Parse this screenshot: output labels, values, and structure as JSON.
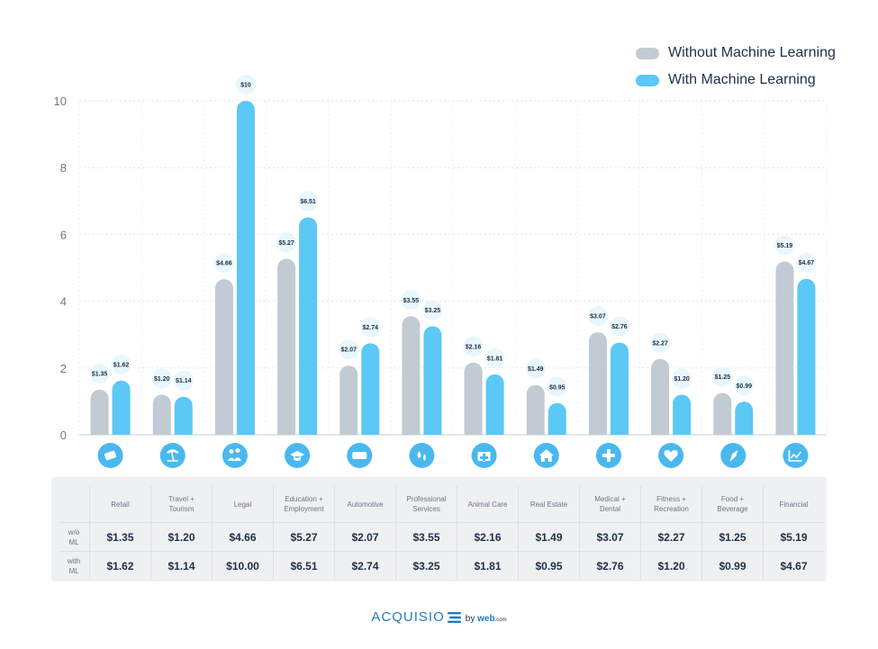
{
  "chart_data": {
    "type": "bar",
    "categories": [
      "Retail",
      "Travel + Tourism",
      "Legal",
      "Education + Employment",
      "Automotive",
      "Professional Services",
      "Animal Care",
      "Real Estate",
      "Medical + Dental",
      "Fitness + Recreation",
      "Food + Beverage",
      "Financial"
    ],
    "series": [
      {
        "name": "Without Machine Learning",
        "color": "#c2cbd3",
        "values": [
          1.35,
          1.2,
          4.66,
          5.27,
          2.07,
          3.55,
          2.16,
          1.49,
          3.07,
          2.27,
          1.25,
          5.19
        ],
        "labels": [
          "$1.35",
          "$1.20",
          "$4.66",
          "$5.27",
          "$2.07",
          "$3.55",
          "$2.16",
          "$1.49",
          "$3.07",
          "$2.27",
          "$1.25",
          "$5.19"
        ]
      },
      {
        "name": "With Machine Learning",
        "color": "#5bc8f5",
        "values": [
          1.62,
          1.14,
          10,
          6.51,
          2.74,
          3.25,
          1.81,
          0.95,
          2.76,
          1.2,
          0.99,
          4.67
        ],
        "labels": [
          "$1.62",
          "$1.14",
          "$10",
          "$6.51",
          "$2.74",
          "$3.25",
          "$1.81",
          "$0.95",
          "$2.76",
          "$1.20",
          "$0.99",
          "$4.67"
        ]
      }
    ],
    "ylim": [
      0,
      10
    ],
    "yticks": [
      0,
      2,
      4,
      6,
      8,
      10
    ],
    "grid": true,
    "legend_position": "top-right"
  },
  "category_icons": [
    "ticket-icon",
    "palm-tree-icon",
    "people-icon",
    "graduation-cap-icon",
    "car-icon",
    "drops-icon",
    "first-aid-kit-icon",
    "house-icon",
    "medical-cross-icon",
    "heart-monitor-icon",
    "food-icon",
    "chart-icon"
  ],
  "colors": {
    "accent": "#5bc8f5",
    "muted": "#c2cbd3",
    "icon_circle": "#4ab8ef"
  },
  "table": {
    "headers": [
      [
        "Retail"
      ],
      [
        "Travel +",
        "Tourism"
      ],
      [
        "Legal"
      ],
      [
        "Education +",
        "Employment"
      ],
      [
        "Automotive"
      ],
      [
        "Professional",
        "Services"
      ],
      [
        "Animal Care"
      ],
      [
        "Real Estate"
      ],
      [
        "Medical +",
        "Dental"
      ],
      [
        "Fitness +",
        "Recreation"
      ],
      [
        "Food +",
        "Beverage"
      ],
      [
        "Financial"
      ]
    ],
    "rows": [
      {
        "label": [
          "w/o",
          "ML"
        ],
        "values": [
          "$1.35",
          "$1.20",
          "$4.66",
          "$5.27",
          "$2.07",
          "$3.55",
          "$2.16",
          "$1.49",
          "$3.07",
          "$2.27",
          "$1.25",
          "$5.19"
        ]
      },
      {
        "label": [
          "with",
          "ML"
        ],
        "values": [
          "$1.62",
          "$1.14",
          "$10.00",
          "$6.51",
          "$2.74",
          "$3.25",
          "$1.81",
          "$0.95",
          "$2.76",
          "$1.20",
          "$0.99",
          "$4.67"
        ]
      }
    ]
  },
  "footer": {
    "brand": "ACQUISIO",
    "by": "by",
    "web": "web",
    "dotcom": ".com"
  }
}
